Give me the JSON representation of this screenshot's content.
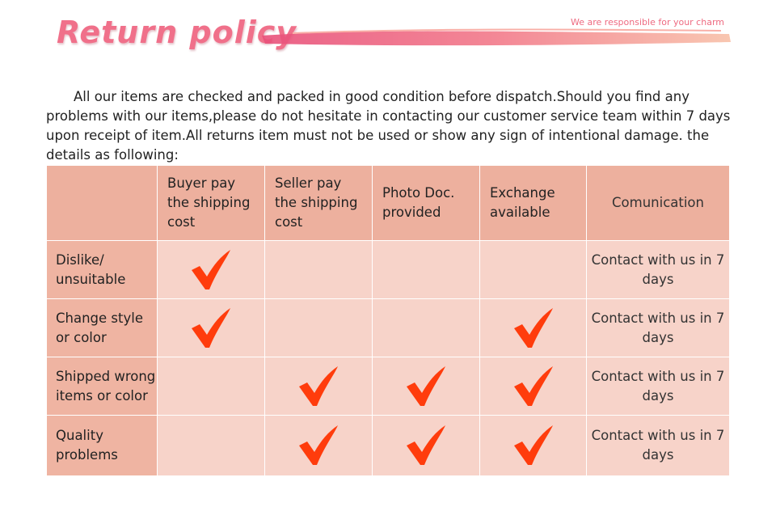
{
  "header": {
    "title": "Return policy",
    "tagline": "We are responsible for your charm"
  },
  "intro": "All our items are checked and packed in good condition before dispatch.Should you find any problems with our items,please do not hesitate in contacting our customer service team within 7 days upon receipt of item.All returns item must not be used or show any sign of intentional damage. the details as following:",
  "table": {
    "headers": [
      "Buyer pay the shipping cost",
      "Seller pay the shipping cost",
      "Photo Doc. provided",
      "Exchange available",
      "Comunication"
    ],
    "rows": [
      {
        "label": "Dislike/ unsuitable",
        "checks": [
          true,
          false,
          false,
          false
        ],
        "contact": "Contact with us in 7 days"
      },
      {
        "label": "Change style or color",
        "checks": [
          true,
          false,
          false,
          true
        ],
        "contact": "Contact with us in 7 days"
      },
      {
        "label": "Shipped wrong items or color",
        "checks": [
          false,
          true,
          true,
          true
        ],
        "contact": "Contact with us in 7 days"
      },
      {
        "label": "Quality problems",
        "checks": [
          false,
          true,
          true,
          true
        ],
        "contact": "Contact with us in 7 days"
      }
    ]
  }
}
